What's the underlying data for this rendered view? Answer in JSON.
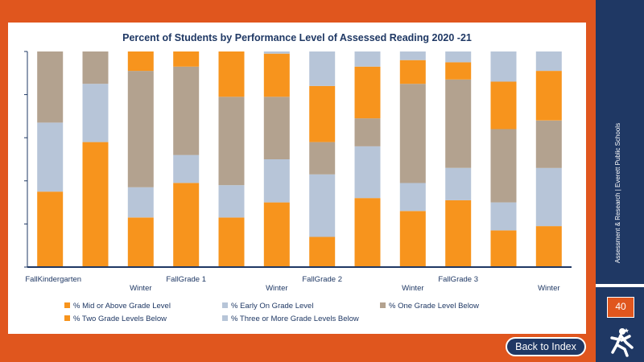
{
  "slide": {
    "sidebar_caption": "Assessment & Research | Everett Public Schools",
    "page_number": "40",
    "back_button_label": "Back to Index"
  },
  "colors": {
    "mid_or_above": "#f7941d",
    "early_on": "#b7c5d8",
    "one_below": "#b3a28f",
    "two_below": "#f7941d",
    "three_or_more": "#b7c5d8",
    "accent_orange": "#e0561e",
    "navy": "#1f3864"
  },
  "chart_data": {
    "type": "bar",
    "stacked": true,
    "normalized_percent": true,
    "title": "Percent of Students by Performance Level of Assessed Reading 2020 -21",
    "ylim": [
      0,
      100
    ],
    "grid": false,
    "legend_position": "bottom",
    "x_labels": [
      "FallKindergarten",
      "",
      "Winter",
      "FallGrade 1",
      "",
      "Winter",
      "FallGrade 2",
      "",
      "Winter",
      "FallGrade 3",
      "",
      "Winter"
    ],
    "series": [
      {
        "name": "% Mid or Above Grade Level",
        "values": [
          35,
          58,
          23,
          39,
          23,
          30,
          14,
          32,
          26,
          31,
          17,
          19
        ]
      },
      {
        "name": "% Early On Grade Level",
        "values": [
          32,
          27,
          14,
          13,
          15,
          20,
          29,
          24,
          13,
          15,
          13,
          27
        ]
      },
      {
        "name": "% One Grade Level Below",
        "values": [
          33,
          15,
          54,
          41,
          41,
          29,
          15,
          13,
          46,
          41,
          34,
          22
        ]
      },
      {
        "name": "% Two Grade Levels Below",
        "values": [
          0,
          0,
          9,
          7,
          21,
          20,
          26,
          24,
          11,
          8,
          22,
          23
        ]
      },
      {
        "name": "% Three or More Grade Levels Below",
        "values": [
          0,
          0,
          0,
          0,
          0,
          1,
          16,
          7,
          4,
          5,
          14,
          9
        ]
      }
    ]
  }
}
